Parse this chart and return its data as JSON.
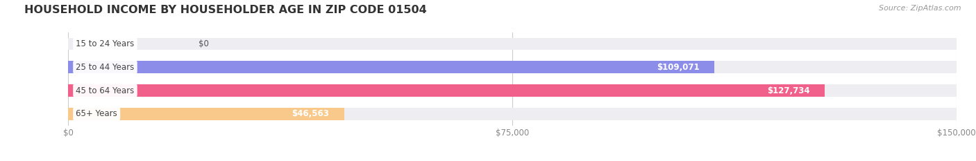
{
  "title": "HOUSEHOLD INCOME BY HOUSEHOLDER AGE IN ZIP CODE 01504",
  "source": "Source: ZipAtlas.com",
  "categories": [
    "15 to 24 Years",
    "25 to 44 Years",
    "45 to 64 Years",
    "65+ Years"
  ],
  "values": [
    0,
    109071,
    127734,
    46563
  ],
  "bar_colors": [
    "#5ecfc9",
    "#8b8de8",
    "#f0608a",
    "#f8c98a"
  ],
  "value_labels": [
    "$0",
    "$109,071",
    "$127,734",
    "$46,563"
  ],
  "x_ticks": [
    0,
    75000,
    150000
  ],
  "x_tick_labels": [
    "$0",
    "$75,000",
    "$150,000"
  ],
  "xlim": [
    0,
    150000
  ],
  "title_fontsize": 11.5,
  "label_fontsize": 8.5,
  "value_fontsize": 8.5,
  "source_fontsize": 8,
  "background_color": "#ffffff",
  "bar_bg_color": "#ededf2",
  "bar_height": 0.52,
  "bar_gap": 0.12
}
